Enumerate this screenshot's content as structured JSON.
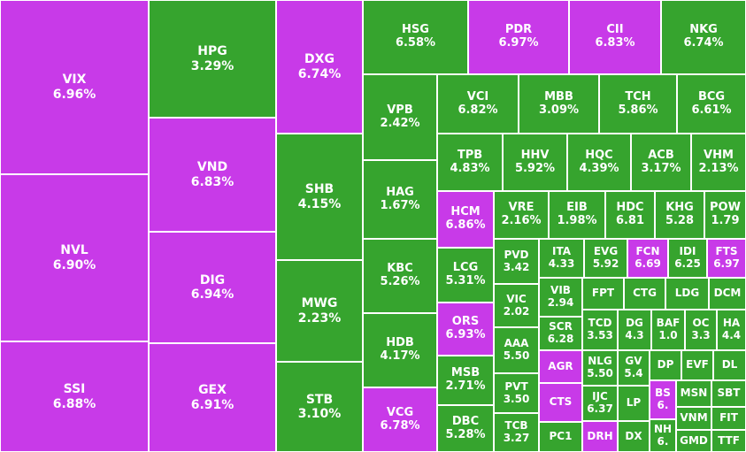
{
  "colors": {
    "purple": "#c83ae8",
    "green": "#36a42e",
    "border": "#ffffff"
  },
  "chart_data": {
    "type": "treemap",
    "tiles": [
      {
        "symbol": "VIX",
        "change": "6.96%",
        "color": "purple"
      },
      {
        "symbol": "NVL",
        "change": "6.90%",
        "color": "purple"
      },
      {
        "symbol": "SSI",
        "change": "6.88%",
        "color": "purple"
      },
      {
        "symbol": "HPG",
        "change": "3.29%",
        "color": "green"
      },
      {
        "symbol": "VND",
        "change": "6.83%",
        "color": "purple"
      },
      {
        "symbol": "DIG",
        "change": "6.94%",
        "color": "purple"
      },
      {
        "symbol": "GEX",
        "change": "6.91%",
        "color": "purple"
      },
      {
        "symbol": "DXG",
        "change": "6.74%",
        "color": "purple"
      },
      {
        "symbol": "SHB",
        "change": "4.15%",
        "color": "green"
      },
      {
        "symbol": "MWG",
        "change": "2.23%",
        "color": "green"
      },
      {
        "symbol": "STB",
        "change": "3.10%",
        "color": "green"
      },
      {
        "symbol": "HSG",
        "change": "6.58%",
        "color": "green"
      },
      {
        "symbol": "PDR",
        "change": "6.97%",
        "color": "purple"
      },
      {
        "symbol": "CII",
        "change": "6.83%",
        "color": "purple"
      },
      {
        "symbol": "NKG",
        "change": "6.74%",
        "color": "green"
      },
      {
        "symbol": "VPB",
        "change": "2.42%",
        "color": "green"
      },
      {
        "symbol": "HAG",
        "change": "1.67%",
        "color": "green"
      },
      {
        "symbol": "KBC",
        "change": "5.26%",
        "color": "green"
      },
      {
        "symbol": "HDB",
        "change": "4.17%",
        "color": "green"
      },
      {
        "symbol": "VCG",
        "change": "6.78%",
        "color": "purple"
      },
      {
        "symbol": "VCI",
        "change": "6.82%",
        "color": "green"
      },
      {
        "symbol": "MBB",
        "change": "3.09%",
        "color": "green"
      },
      {
        "symbol": "TCH",
        "change": "5.86%",
        "color": "green"
      },
      {
        "symbol": "BCG",
        "change": "6.61%",
        "color": "green"
      },
      {
        "symbol": "TPB",
        "change": "4.83%",
        "color": "green"
      },
      {
        "symbol": "HHV",
        "change": "5.92%",
        "color": "green"
      },
      {
        "symbol": "HQC",
        "change": "4.39%",
        "color": "green"
      },
      {
        "symbol": "ACB",
        "change": "3.17%",
        "color": "green"
      },
      {
        "symbol": "VHM",
        "change": "2.13%",
        "color": "green"
      },
      {
        "symbol": "HCM",
        "change": "6.86%",
        "color": "purple"
      },
      {
        "symbol": "VRE",
        "change": "2.16%",
        "color": "green"
      },
      {
        "symbol": "EIB",
        "change": "1.98%",
        "color": "green"
      },
      {
        "symbol": "HDC",
        "change": "6.81",
        "color": "green"
      },
      {
        "symbol": "KHG",
        "change": "5.28",
        "color": "green"
      },
      {
        "symbol": "POW",
        "change": "1.79",
        "color": "green"
      },
      {
        "symbol": "LCG",
        "change": "5.31%",
        "color": "green"
      },
      {
        "symbol": "ORS",
        "change": "6.93%",
        "color": "purple"
      },
      {
        "symbol": "MSB",
        "change": "2.71%",
        "color": "green"
      },
      {
        "symbol": "DBC",
        "change": "5.28%",
        "color": "green"
      },
      {
        "symbol": "PVD",
        "change": "3.42",
        "color": "green"
      },
      {
        "symbol": "VIC",
        "change": "2.02",
        "color": "green"
      },
      {
        "symbol": "AAA",
        "change": "5.50",
        "color": "green"
      },
      {
        "symbol": "PVT",
        "change": "3.50",
        "color": "green"
      },
      {
        "symbol": "TCB",
        "change": "3.27",
        "color": "green"
      },
      {
        "symbol": "ITA",
        "change": "4.33",
        "color": "green"
      },
      {
        "symbol": "EVG",
        "change": "5.92",
        "color": "green"
      },
      {
        "symbol": "FCN",
        "change": "6.69",
        "color": "purple"
      },
      {
        "symbol": "IDI",
        "change": "6.25",
        "color": "green"
      },
      {
        "symbol": "FTS",
        "change": "6.97",
        "color": "purple"
      },
      {
        "symbol": "VIB",
        "change": "2.94",
        "color": "green"
      },
      {
        "symbol": "FPT",
        "change": "",
        "color": "green"
      },
      {
        "symbol": "CTG",
        "change": "",
        "color": "green"
      },
      {
        "symbol": "LDG",
        "change": "",
        "color": "green"
      },
      {
        "symbol": "DCM",
        "change": "",
        "color": "green"
      },
      {
        "symbol": "SCR",
        "change": "6.28",
        "color": "green"
      },
      {
        "symbol": "TCD",
        "change": "3.53",
        "color": "green"
      },
      {
        "symbol": "DG",
        "change": "4.3",
        "color": "green"
      },
      {
        "symbol": "BAF",
        "change": "1.0",
        "color": "green"
      },
      {
        "symbol": "OC",
        "change": "3.3",
        "color": "green"
      },
      {
        "symbol": "HA",
        "change": "4.4",
        "color": "green"
      },
      {
        "symbol": "AGR",
        "change": "",
        "color": "purple"
      },
      {
        "symbol": "NLG",
        "change": "5.50",
        "color": "green"
      },
      {
        "symbol": "GV",
        "change": "5.4",
        "color": "green"
      },
      {
        "symbol": "DP",
        "change": "",
        "color": "green"
      },
      {
        "symbol": "EVF",
        "change": "",
        "color": "green"
      },
      {
        "symbol": "DL",
        "change": "",
        "color": "green"
      },
      {
        "symbol": "CTS",
        "change": "",
        "color": "purple"
      },
      {
        "symbol": "IJC",
        "change": "6.37",
        "color": "green"
      },
      {
        "symbol": "LP",
        "change": "",
        "color": "green"
      },
      {
        "symbol": "BS",
        "change": "6.",
        "color": "purple"
      },
      {
        "symbol": "MSN",
        "change": "",
        "color": "green"
      },
      {
        "symbol": "SBT",
        "change": "",
        "color": "green"
      },
      {
        "symbol": "VNM",
        "change": "",
        "color": "green"
      },
      {
        "symbol": "FIT",
        "change": "",
        "color": "green"
      },
      {
        "symbol": "NH",
        "change": "6.",
        "color": "green"
      },
      {
        "symbol": "GMD",
        "change": "",
        "color": "green"
      },
      {
        "symbol": "TTF",
        "change": "",
        "color": "green"
      },
      {
        "symbol": "PC1",
        "change": "",
        "color": "green"
      },
      {
        "symbol": "DRH",
        "change": "",
        "color": "purple"
      },
      {
        "symbol": "DX",
        "change": "",
        "color": "green"
      }
    ]
  }
}
